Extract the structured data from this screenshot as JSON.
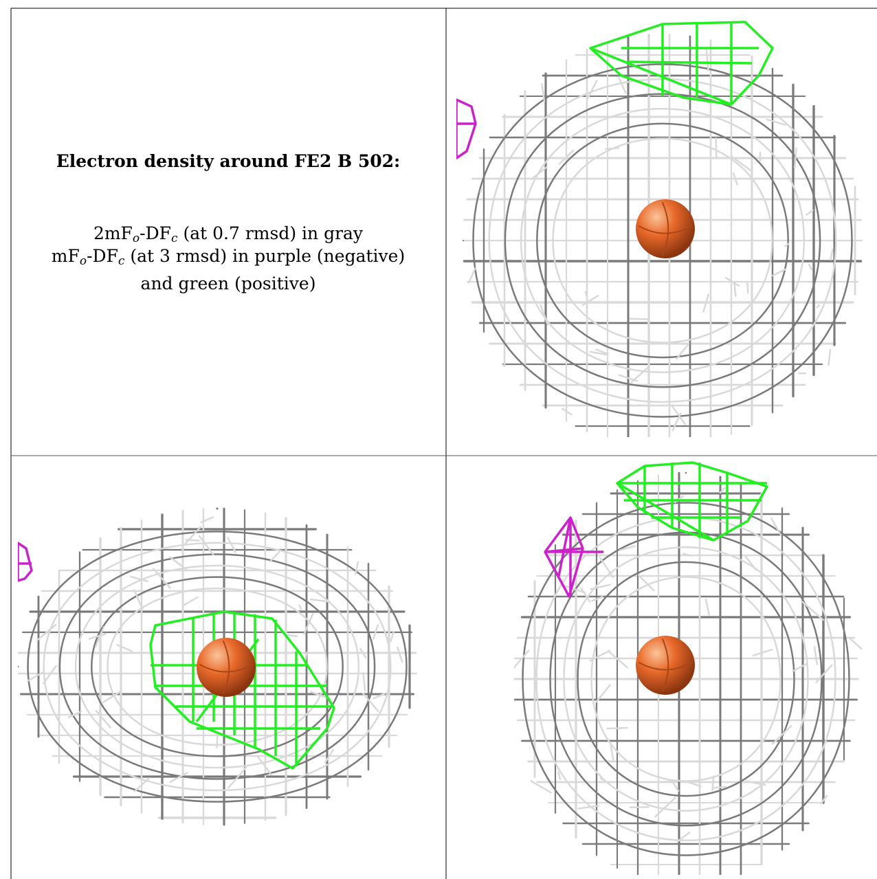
{
  "caption": {
    "title": "Electron density around FE2 B 502:",
    "map1_prefix": "2mF",
    "map1_sub_o": "o",
    "map1_mid": "-DF",
    "map1_sub_c": "c",
    "map1_suffix": " (at 0.7 rmsd) in gray",
    "map2_prefix": "mF",
    "map2_sub_o": "o",
    "map2_mid": "-DF",
    "map2_sub_c": "c",
    "map2_suffix": " (at 3 rmsd) in purple (negative)",
    "line3": "and green (positive)"
  },
  "colors": {
    "gray_mesh_light": "#d9d9d9",
    "gray_mesh_dark": "#7a7a7a",
    "negative_mesh": "#cc22cc",
    "positive_mesh": "#22ee22",
    "iron_atom": "#e8692a",
    "frame": "#000000"
  },
  "views": [
    {
      "name": "view-front",
      "atom": "FE2 B 502"
    },
    {
      "name": "view-top",
      "atom": "FE2 B 502"
    },
    {
      "name": "view-side",
      "atom": "FE2 B 502"
    }
  ]
}
